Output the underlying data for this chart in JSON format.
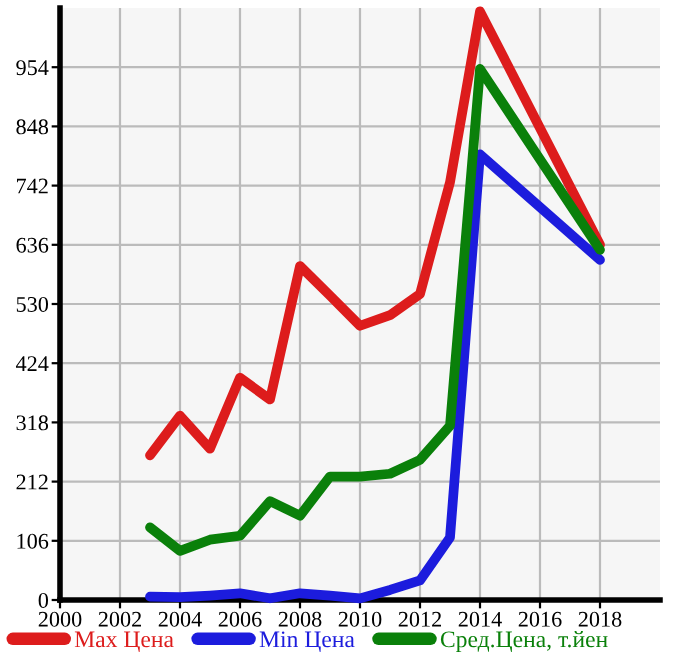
{
  "chart_data": {
    "type": "line",
    "x": [
      2003,
      2004,
      2005,
      2006,
      2007,
      2008,
      2009,
      2010,
      2011,
      2012,
      2013,
      2014,
      2018
    ],
    "series": [
      {
        "name": "Max Цена",
        "color": "#dd1c1c",
        "values": [
          259,
          330,
          271,
          398,
          359,
          598,
          545,
          491,
          510,
          548,
          748,
          1054,
          636
        ]
      },
      {
        "name": "Min Цена",
        "color": "#1c1cdd",
        "values": [
          6,
          5,
          8,
          12,
          3,
          12,
          8,
          3,
          18,
          35,
          112,
          798,
          609
        ]
      },
      {
        "name": "Сред.Цена, т.йен",
        "color": "#0a800a",
        "values": [
          130,
          88,
          108,
          115,
          177,
          151,
          221,
          221,
          226,
          251,
          312,
          951,
          627
        ]
      }
    ],
    "xlim": [
      2000,
      2020
    ],
    "xticks": [
      2000,
      2002,
      2004,
      2006,
      2008,
      2010,
      2012,
      2014,
      2016,
      2018
    ],
    "ylim": [
      0,
      1060
    ],
    "yticks": [
      0,
      106,
      212,
      318,
      424,
      530,
      636,
      742,
      848,
      954
    ],
    "grid": true,
    "legend": "bottom",
    "marker": "none",
    "line_style": "solid"
  }
}
